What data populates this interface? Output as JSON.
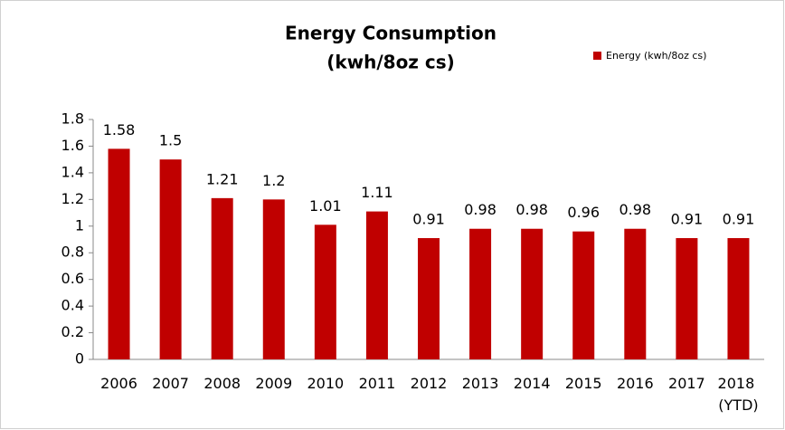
{
  "chart_data": {
    "type": "bar",
    "title": [
      "Energy Consumption",
      "(kwh/8oz cs)"
    ],
    "categories": [
      "2006",
      "2007",
      "2008",
      "2009",
      "2010",
      "2011",
      "2012",
      "2013",
      "2014",
      "2015",
      "2016",
      "2017",
      "2018 (YTD)"
    ],
    "series": [
      {
        "name": "Energy (kwh/8oz cs)",
        "color": "#c00000",
        "values": [
          1.58,
          1.5,
          1.21,
          1.2,
          1.01,
          1.11,
          0.91,
          0.98,
          0.98,
          0.96,
          0.98,
          0.91,
          0.91
        ]
      }
    ],
    "ylim": [
      0,
      1.8
    ],
    "yticks": [
      0,
      0.2,
      0.4,
      0.6,
      0.8,
      1,
      1.2,
      1.4,
      1.6,
      1.8
    ],
    "grid": false,
    "legend": "top-right",
    "data_labels": true
  }
}
